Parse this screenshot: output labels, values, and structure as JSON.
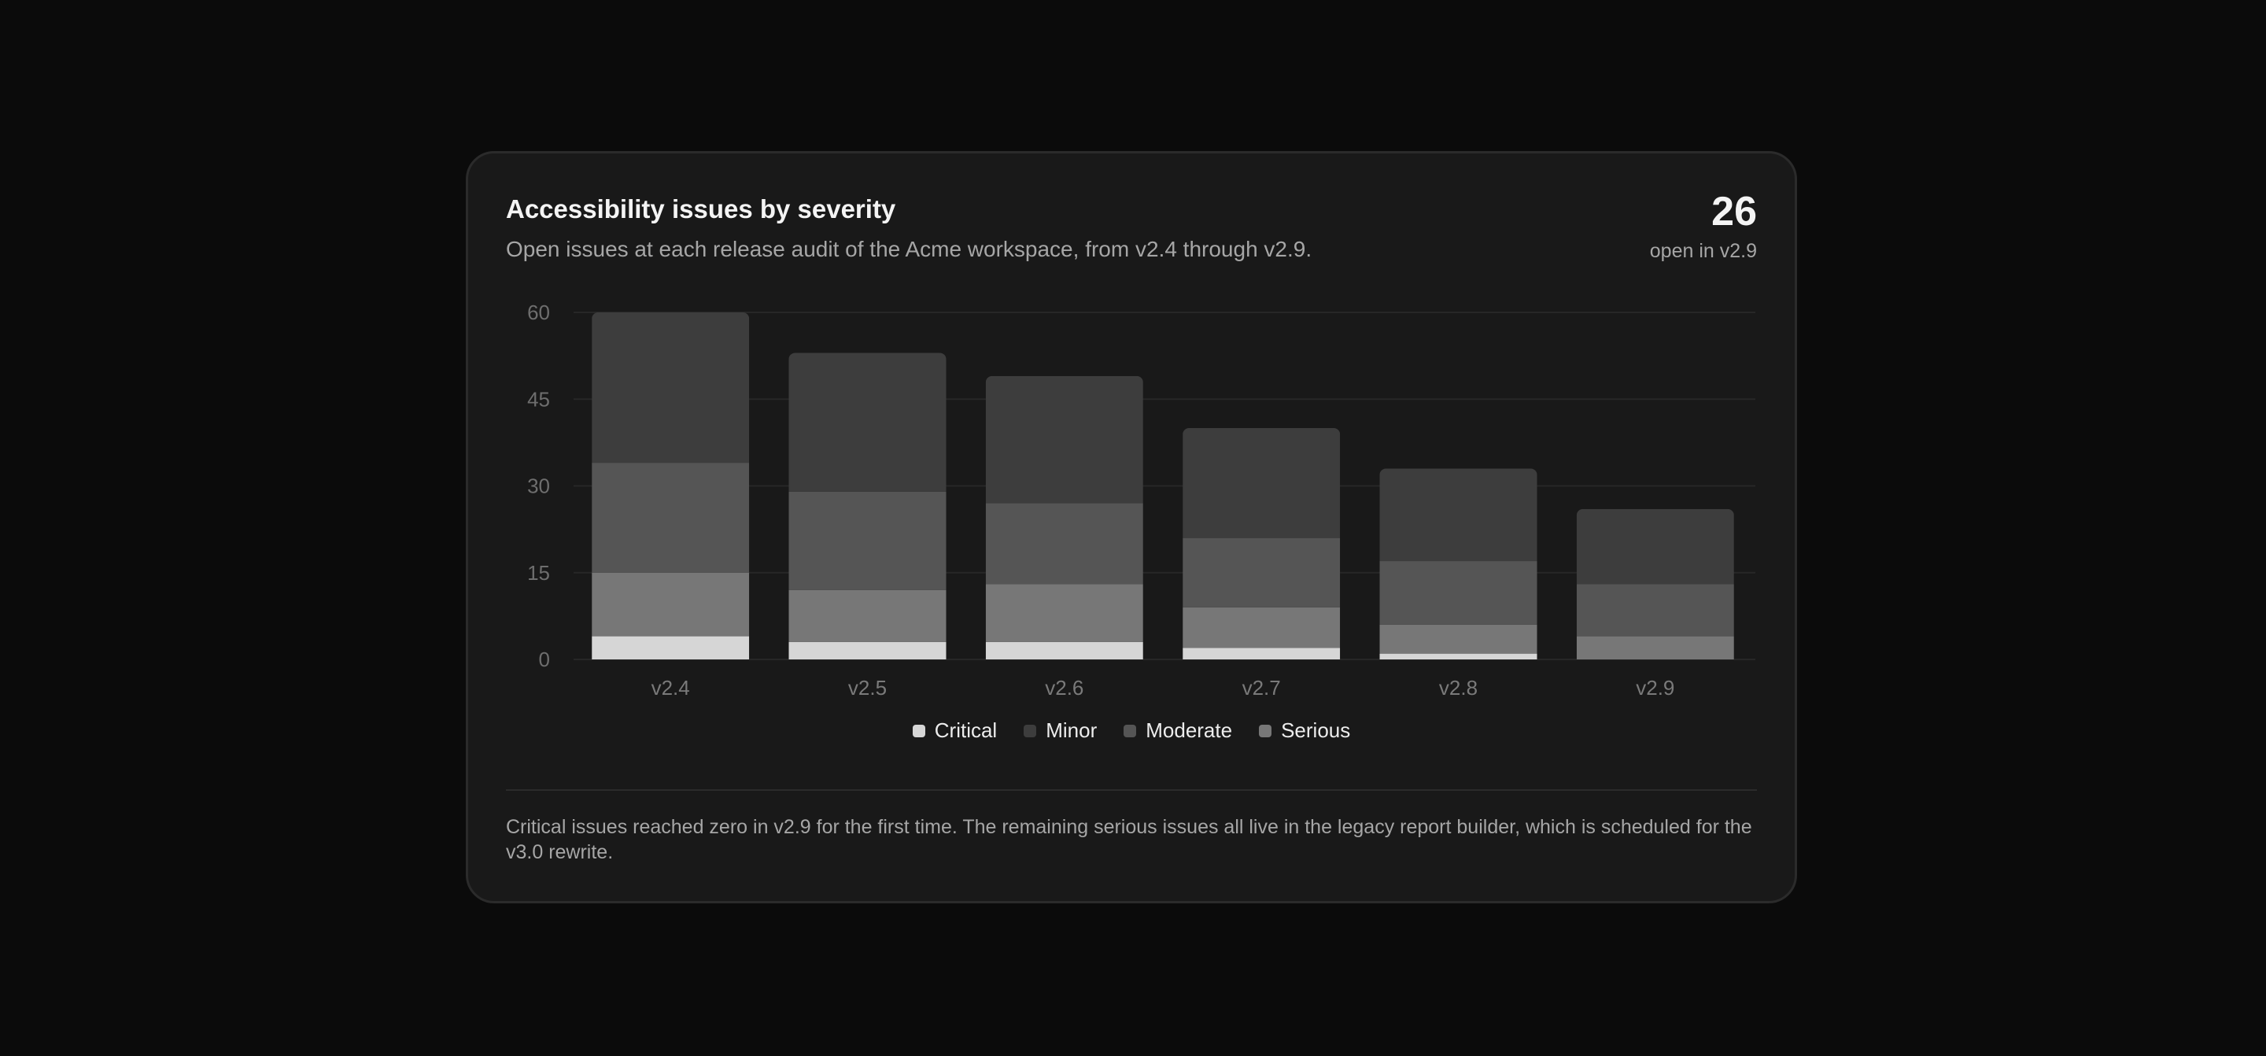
{
  "card": {
    "title": "Accessibility issues by severity",
    "subtitle": "Open issues at each release audit of the Acme workspace, from v2.4 through v2.9.",
    "kpi_value": "26",
    "kpi_label": "open in v2.9",
    "footnote": "Critical issues reached zero in v2.9 for the first time. The remaining serious issues all live in the legacy report builder, which is scheduled for the v3.0 rewrite."
  },
  "chart_data": {
    "type": "bar",
    "stacked": true,
    "categories": [
      "v2.4",
      "v2.5",
      "v2.6",
      "v2.7",
      "v2.8",
      "v2.9"
    ],
    "series": [
      {
        "name": "Critical",
        "color": "#d6d6d6",
        "values": [
          4,
          3,
          3,
          2,
          1,
          0
        ]
      },
      {
        "name": "Serious",
        "color": "#777777",
        "values": [
          11,
          9,
          10,
          7,
          5,
          4
        ]
      },
      {
        "name": "Moderate",
        "color": "#555555",
        "values": [
          19,
          17,
          14,
          12,
          11,
          9
        ]
      },
      {
        "name": "Minor",
        "color": "#3d3d3d",
        "values": [
          26,
          24,
          22,
          19,
          16,
          13
        ]
      }
    ],
    "legend_order": [
      "Critical",
      "Minor",
      "Moderate",
      "Serious"
    ],
    "yticks": [
      0,
      15,
      30,
      45,
      60
    ],
    "ylim": [
      0,
      60
    ],
    "grid": true,
    "legend_position": "bottom-center"
  }
}
